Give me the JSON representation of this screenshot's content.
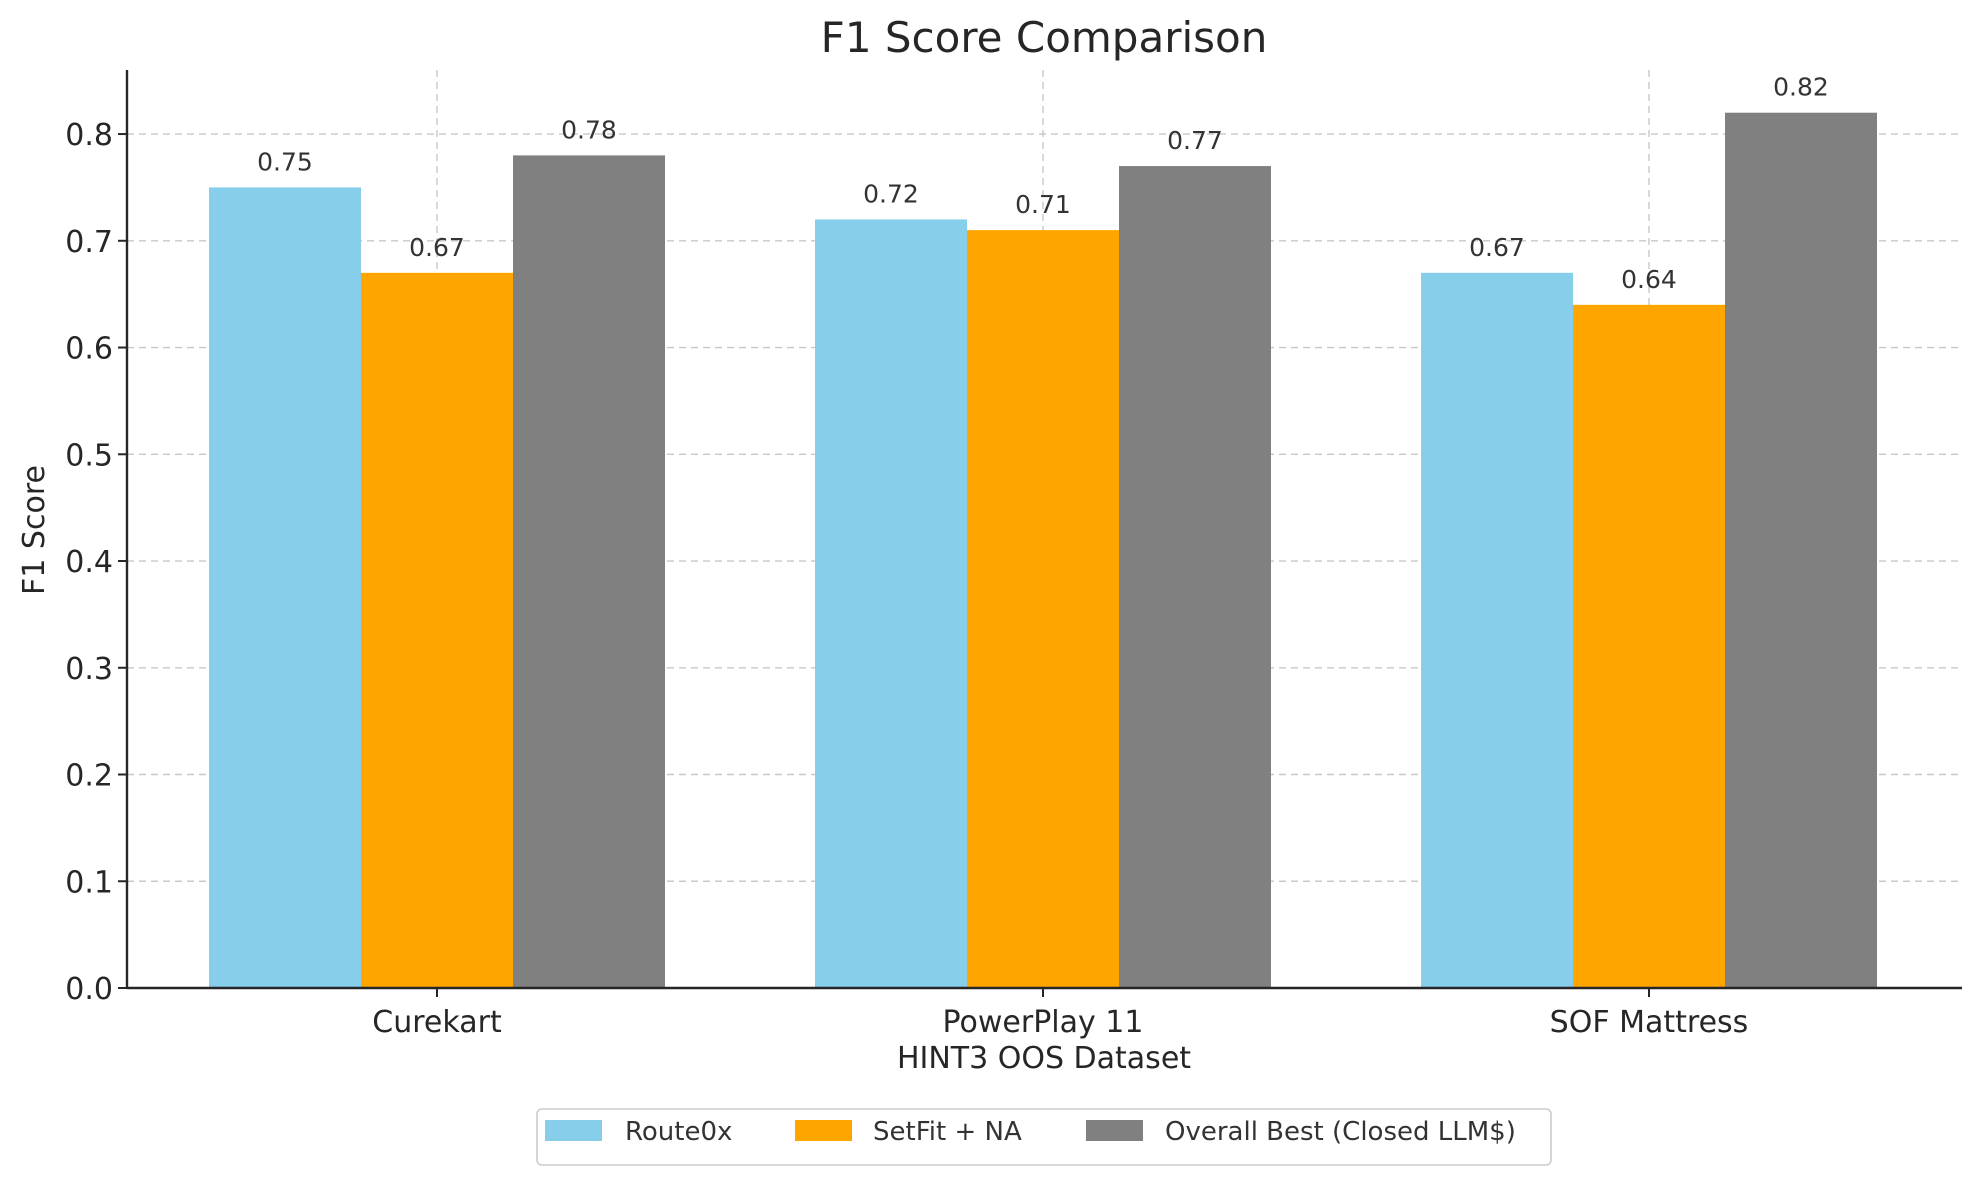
{
  "chart_data": {
    "type": "bar",
    "title": "F1 Score Comparison",
    "xlabel": "HINT3 OOS Dataset",
    "ylabel": "F1 Score",
    "categories": [
      "Curekart",
      "PowerPlay 11",
      "SOF Mattress"
    ],
    "series": [
      {
        "name": "Route0x",
        "values": [
          0.75,
          0.72,
          0.67
        ],
        "color": "#87ceeb"
      },
      {
        "name": "SetFit + NA",
        "values": [
          0.67,
          0.71,
          0.64
        ],
        "color": "#ffa500"
      },
      {
        "name": "Overall Best (Closed LLM$)",
        "values": [
          0.78,
          0.77,
          0.82
        ],
        "color": "#808080"
      }
    ],
    "ylim": [
      0,
      0.86
    ],
    "yticks": [
      "0.0",
      "0.1",
      "0.2",
      "0.3",
      "0.4",
      "0.5",
      "0.6",
      "0.7",
      "0.8"
    ],
    "data_labels": true,
    "grid": true,
    "legend_position": "bottom-center"
  }
}
